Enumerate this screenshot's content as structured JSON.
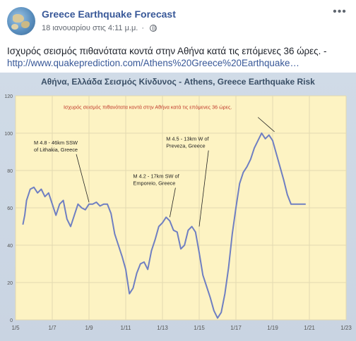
{
  "post": {
    "page_name": "Greece Earthquake Forecast",
    "date": "18 ιανουαρίου στις 4:11 μ.μ.",
    "separator": "·",
    "text": "Ισχυρός σεισμός πιθανότατα κοντά στην Αθήνα κατά τις επόμενες 36 ώρες. -",
    "link": "http://www.quakeprediction.com/Athens%20Greece%20Earthquake…"
  },
  "colors": {
    "page_name": "#385898",
    "link": "#385898",
    "chart_bg": "#fdf3c3",
    "chart_border": "#c9d4e2",
    "line": "#6f7fc2",
    "annotation_red": "#c0392b",
    "title": "#3a4f66"
  },
  "icons": {
    "globe": "globe-icon",
    "more": "more-options-icon",
    "avatar": "world-map-avatar"
  },
  "chart_data": {
    "type": "line",
    "title": "Αθήνα, Ελλάδα Σεισμός Κίνδυνος - Athens, Greece Earthquake Risk",
    "xlabel": "",
    "ylabel": "",
    "x_tick_labels": [
      "1/5",
      "1/7",
      "1/9",
      "1/11",
      "1/13",
      "1/15",
      "1/17",
      "1/19",
      "1/21",
      "1/23"
    ],
    "y_tick_labels": [
      "0",
      "20",
      "40",
      "60",
      "80",
      "100",
      "120"
    ],
    "xlim": [
      5,
      23
    ],
    "ylim": [
      0,
      120
    ],
    "grid": true,
    "series": [
      {
        "x": [
          5.4,
          5.5,
          5.6,
          5.8,
          6.0,
          6.2,
          6.4,
          6.6,
          6.8,
          7.0,
          7.2,
          7.4,
          7.6,
          7.8,
          8.0,
          8.2,
          8.4,
          8.6,
          8.8,
          9.0,
          9.2,
          9.4,
          9.6,
          9.8,
          10.0,
          10.2,
          10.4,
          10.6,
          10.8,
          11.0,
          11.2,
          11.4,
          11.6,
          11.8,
          12.0,
          12.2,
          12.4,
          12.6,
          12.8,
          13.0,
          13.2,
          13.4,
          13.6,
          13.8,
          14.0,
          14.2,
          14.4,
          14.6,
          14.8,
          15.0,
          15.2,
          15.4,
          15.6,
          15.8,
          16.0,
          16.2,
          16.4,
          16.6,
          16.8,
          17.0,
          17.2,
          17.4,
          17.6,
          17.8,
          18.0,
          18.2,
          18.4,
          18.6,
          18.8,
          19.0,
          19.2,
          19.4,
          19.6,
          19.8,
          20.0,
          20.2,
          20.4,
          20.6,
          20.8
        ],
        "y": [
          51,
          56,
          64,
          70,
          71,
          68,
          70,
          66,
          68,
          62,
          56,
          62,
          64,
          54,
          50,
          56,
          62,
          60,
          59,
          62,
          62,
          63,
          61,
          62,
          62,
          57,
          46,
          40,
          34,
          27,
          14,
          17,
          25,
          30,
          31,
          27,
          37,
          43,
          50,
          52,
          55,
          53,
          48,
          47,
          38,
          40,
          48,
          50,
          47,
          36,
          24,
          18,
          12,
          5,
          1,
          4,
          14,
          28,
          46,
          60,
          73,
          79,
          82,
          86,
          92,
          96,
          100,
          97,
          99,
          96,
          89,
          82,
          75,
          67,
          62,
          62,
          62,
          62,
          62
        ]
      }
    ],
    "annotations": [
      {
        "text": "Ισχυρός σεισμός πιθανότατα κοντά στην Αθήνα κατά τις επόμενες 36 ώρες.",
        "x": 12.2,
        "y": 113,
        "color": "red"
      },
      {
        "line1": "M 4.8 - 46km SSW",
        "line2": "of Lithakia, Greece",
        "x": 6.0,
        "y": 94,
        "target_x": 9.0,
        "target_y": 63
      },
      {
        "line1": "M 4.5 - 13km W of",
        "line2": "Preveza, Greece",
        "x": 13.2,
        "y": 96,
        "target_x": 15.0,
        "target_y": 50
      },
      {
        "line1": "M 4.2 - 17km SW of",
        "line2": "Emporeio, Greece",
        "x": 11.4,
        "y": 76,
        "target_x": 13.4,
        "target_y": 55
      }
    ],
    "arrow_to_peak": {
      "from_x": 18.2,
      "from_y": 110,
      "to_x": 19.1,
      "to_y": 100
    }
  }
}
